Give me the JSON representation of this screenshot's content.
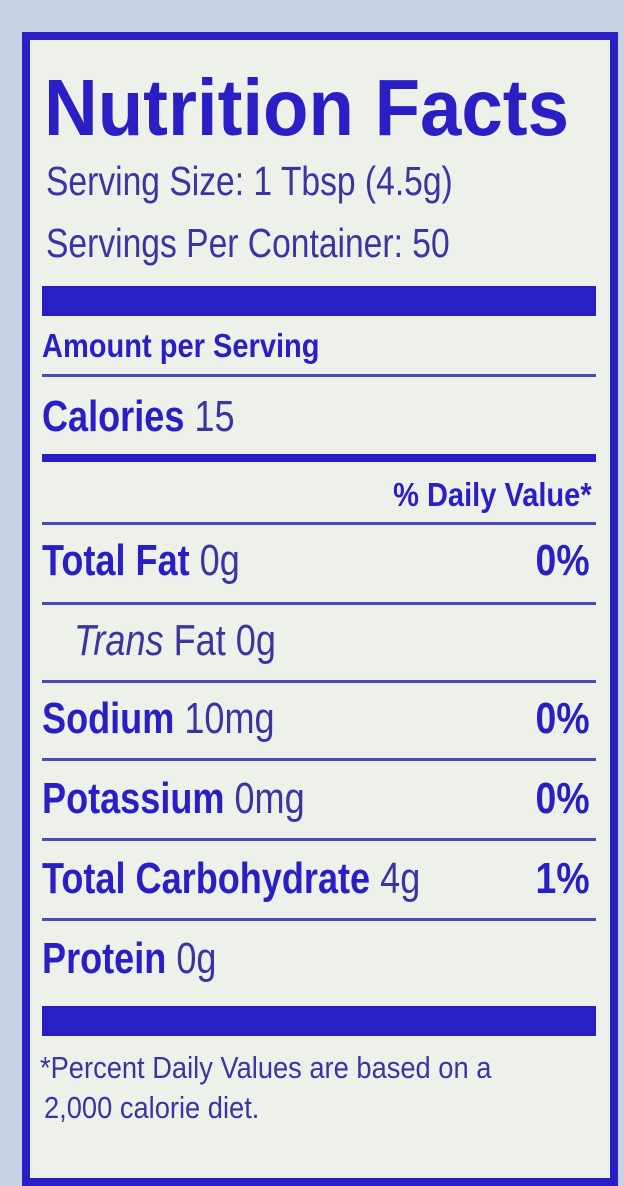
{
  "title": "Nutrition Facts",
  "serving_size": "Serving Size: 1 Tbsp (4.5g)",
  "servings_per_container": "Servings Per Container: 50",
  "amount_per_serving": "Amount per Serving",
  "calories": {
    "label": "Calories",
    "value": "15"
  },
  "daily_value_header": "% Daily Value*",
  "nutrients": [
    {
      "label": "Total Fat",
      "amount": "0g",
      "dv": "0%"
    },
    {
      "label": "Trans",
      "label_suffix": "Fat",
      "amount": "0g"
    },
    {
      "label": "Sodium",
      "amount": "10mg",
      "dv": "0%"
    },
    {
      "label": "Potassium",
      "amount": "0mg",
      "dv": "0%"
    },
    {
      "label": "Total Carbohydrate",
      "amount": "4g",
      "dv": "1%"
    },
    {
      "label": "Protein",
      "amount": "0g"
    }
  ],
  "footnote_line1": "*Percent Daily Values are based on a",
  "footnote_line2": "2,000 calorie diet.",
  "colors": {
    "ink": "#2a1fc4",
    "panel": "#eef0ea",
    "background": "#c9d1e6"
  }
}
